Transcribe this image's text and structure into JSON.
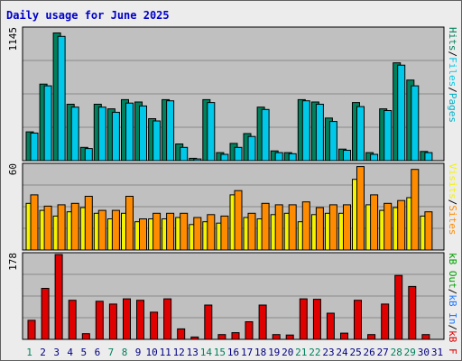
{
  "title": "Daily usage for June 2025",
  "colors": {
    "panel_bg": "#c0c0c0",
    "gridline": "#8a8a8a",
    "hits": "#00805c",
    "files": "#00c8e8",
    "pages": "#00b0c8",
    "visits": "#f4f400",
    "sites": "#ff8c00",
    "kb_in": "#1e78ff",
    "kb_out": "#00a000",
    "kb_f": "#e00000",
    "weekend_day": "#00805c",
    "weekday_day": "#000080",
    "separator": "#000000"
  },
  "legend_hits": {
    "pages": "Pages",
    "files": "Files",
    "hits": "Hits",
    "sep": "/"
  },
  "legend_visits": {
    "visits": "Visits",
    "sites": "Sites",
    "sep": "/"
  },
  "legend_kb": {
    "kb_f": "kB F",
    "kb_in": "kB In",
    "kb_out": "kB Out",
    "sep": "/"
  },
  "chart_data": [
    {
      "type": "bar",
      "panel": "hits",
      "y_max_label": "1145",
      "ylim": [
        0,
        1145
      ],
      "grid": true,
      "x": [
        "1",
        "2",
        "3",
        "4",
        "5",
        "6",
        "7",
        "8",
        "9",
        "10",
        "11",
        "12",
        "13",
        "14",
        "15",
        "16",
        "17",
        "18",
        "19",
        "20",
        "21",
        "22",
        "23",
        "24",
        "25",
        "26",
        "27",
        "28",
        "29",
        "30",
        "31"
      ],
      "series": [
        {
          "name": "Hits",
          "values": [
            250,
            665,
            1110,
            490,
            115,
            490,
            450,
            530,
            510,
            365,
            530,
            145,
            20,
            530,
            70,
            150,
            235,
            465,
            85,
            70,
            530,
            510,
            370,
            100,
            505,
            70,
            450,
            850,
            700,
            80,
            0
          ]
        },
        {
          "name": "Files",
          "values": [
            240,
            650,
            1080,
            465,
            105,
            465,
            420,
            500,
            475,
            345,
            520,
            115,
            15,
            505,
            55,
            115,
            210,
            445,
            70,
            60,
            520,
            490,
            340,
            90,
            470,
            55,
            435,
            830,
            650,
            70,
            0
          ]
        }
      ]
    },
    {
      "type": "bar",
      "panel": "visits",
      "y_max_label": "60",
      "ylim": [
        0,
        60
      ],
      "grid": true,
      "x": [
        "1",
        "2",
        "3",
        "4",
        "5",
        "6",
        "7",
        "8",
        "9",
        "10",
        "11",
        "12",
        "13",
        "14",
        "15",
        "16",
        "17",
        "18",
        "19",
        "20",
        "21",
        "22",
        "23",
        "24",
        "25",
        "26",
        "27",
        "28",
        "29",
        "30",
        "31"
      ],
      "series": [
        {
          "name": "Visits",
          "values": [
            33,
            28,
            24,
            27,
            30,
            26,
            22,
            26,
            20,
            22,
            22,
            23,
            18,
            20,
            19,
            39,
            23,
            22,
            25,
            26,
            20,
            25,
            26,
            26,
            50,
            32,
            28,
            30,
            37,
            24,
            0
          ]
        },
        {
          "name": "Sites",
          "values": [
            39,
            31,
            32,
            33,
            38,
            28,
            28,
            38,
            22,
            26,
            26,
            26,
            23,
            25,
            24,
            42,
            26,
            33,
            32,
            32,
            34,
            30,
            32,
            32,
            59,
            39,
            33,
            35,
            57,
            27,
            0
          ]
        }
      ]
    },
    {
      "type": "bar",
      "panel": "kbytes",
      "y_max_label": "178",
      "ylim": [
        0,
        178
      ],
      "grid": true,
      "x": [
        "1",
        "2",
        "3",
        "4",
        "5",
        "6",
        "7",
        "8",
        "9",
        "10",
        "11",
        "12",
        "13",
        "14",
        "15",
        "16",
        "17",
        "18",
        "19",
        "20",
        "21",
        "22",
        "23",
        "24",
        "25",
        "26",
        "27",
        "28",
        "29",
        "30",
        "31"
      ],
      "series": [
        {
          "name": "kB F",
          "values": [
            40,
            107,
            178,
            82,
            12,
            80,
            74,
            85,
            82,
            57,
            85,
            22,
            5,
            72,
            10,
            14,
            37,
            72,
            10,
            9,
            85,
            84,
            55,
            13,
            82,
            10,
            74,
            134,
            111,
            10,
            0
          ]
        }
      ]
    }
  ],
  "day_labels": [
    "1",
    "2",
    "3",
    "4",
    "5",
    "6",
    "7",
    "8",
    "9",
    "10",
    "11",
    "12",
    "13",
    "14",
    "15",
    "16",
    "17",
    "18",
    "19",
    "20",
    "21",
    "22",
    "23",
    "24",
    "25",
    "26",
    "27",
    "28",
    "29",
    "30",
    "31"
  ],
  "weekend_days": [
    "1",
    "7",
    "8",
    "14",
    "15",
    "21",
    "22",
    "28",
    "29"
  ]
}
